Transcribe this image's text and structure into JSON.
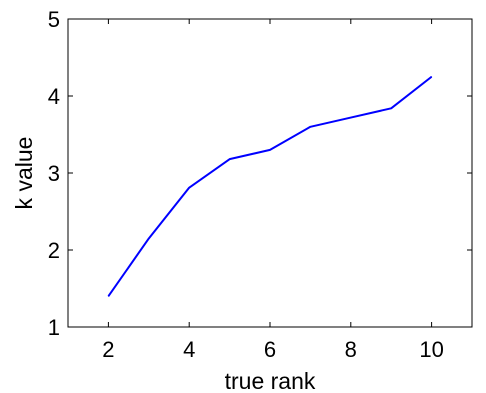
{
  "chart_data": {
    "type": "line",
    "title": "",
    "xlabel": "true rank",
    "ylabel": "k value",
    "xlim": [
      1,
      11
    ],
    "ylim": [
      1,
      5
    ],
    "xticks": [
      2,
      4,
      6,
      8,
      10
    ],
    "yticks": [
      1,
      2,
      3,
      4,
      5
    ],
    "xtick_labels": [
      "2",
      "4",
      "6",
      "8",
      "10"
    ],
    "ytick_labels": [
      "1",
      "2",
      "3",
      "4",
      "5"
    ],
    "grid": false,
    "series": [
      {
        "color": "#0000ff",
        "x": [
          2,
          3,
          4,
          5,
          6,
          7,
          8,
          9,
          10
        ],
        "y": [
          1.4,
          2.15,
          2.81,
          3.18,
          3.3,
          3.6,
          3.72,
          3.84,
          4.25
        ]
      }
    ]
  }
}
